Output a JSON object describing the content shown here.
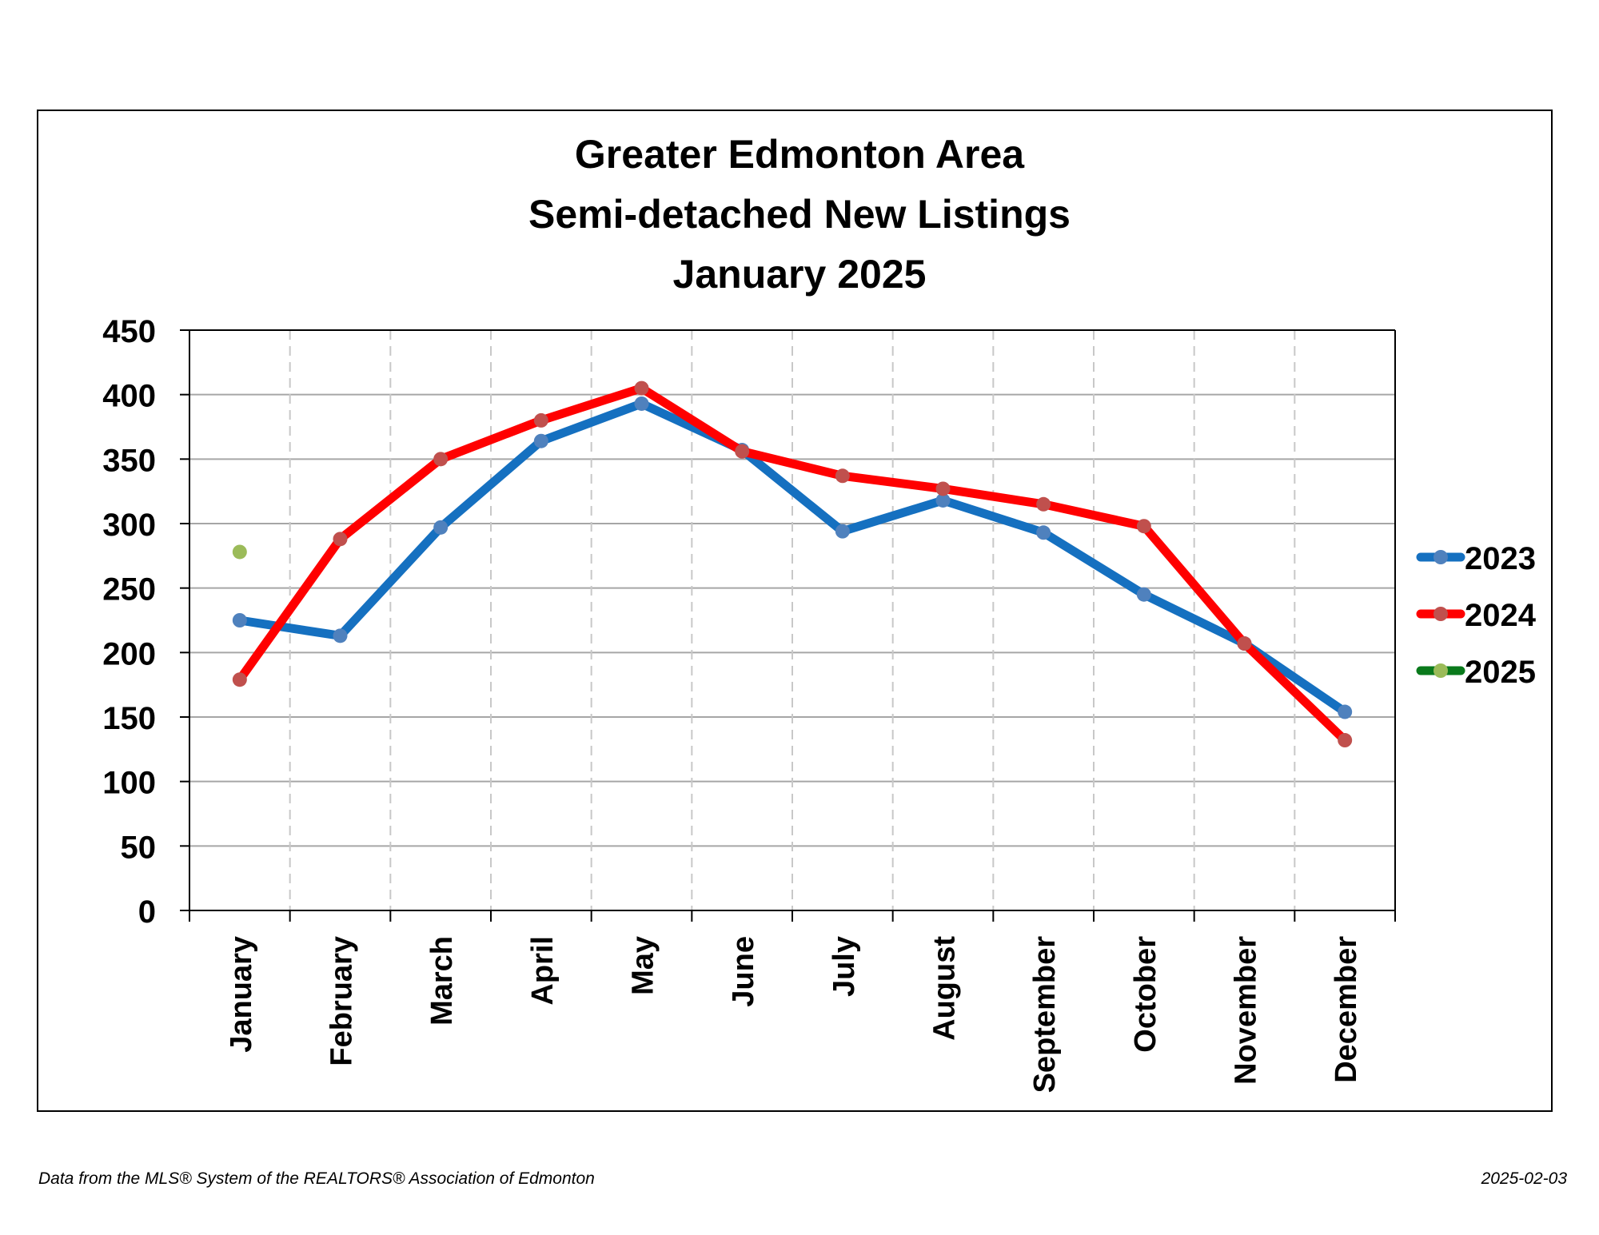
{
  "chart_data": {
    "type": "line",
    "title": [
      "Greater Edmonton Area",
      "Semi-detached New Listings",
      "January 2025"
    ],
    "categories": [
      "January",
      "February",
      "March",
      "April",
      "May",
      "June",
      "July",
      "August",
      "September",
      "October",
      "November",
      "December"
    ],
    "ylim": [
      0,
      450
    ],
    "yticks": [
      0,
      50,
      100,
      150,
      200,
      250,
      300,
      350,
      400,
      450
    ],
    "grid": {
      "horizontal": true,
      "vertical_dashed": true
    },
    "legend_position": "right",
    "series": [
      {
        "name": "2023",
        "color": "#1570c0",
        "marker_color": "#4f81bd",
        "values": [
          225,
          213,
          297,
          364,
          393,
          357,
          294,
          318,
          293,
          245,
          207,
          154
        ]
      },
      {
        "name": "2024",
        "color": "#ff0000",
        "marker_color": "#c0504d",
        "values": [
          179,
          288,
          350,
          380,
          405,
          356,
          337,
          327,
          315,
          298,
          207,
          132
        ]
      },
      {
        "name": "2025",
        "color": "#0a7a1c",
        "marker_color": "#9bbb59",
        "values": [
          278,
          null,
          null,
          null,
          null,
          null,
          null,
          null,
          null,
          null,
          null,
          null
        ]
      }
    ]
  },
  "footer": {
    "source": "Data from the MLS® System of the REALTORS® Association of Edmonton",
    "date": "2025-02-03"
  }
}
